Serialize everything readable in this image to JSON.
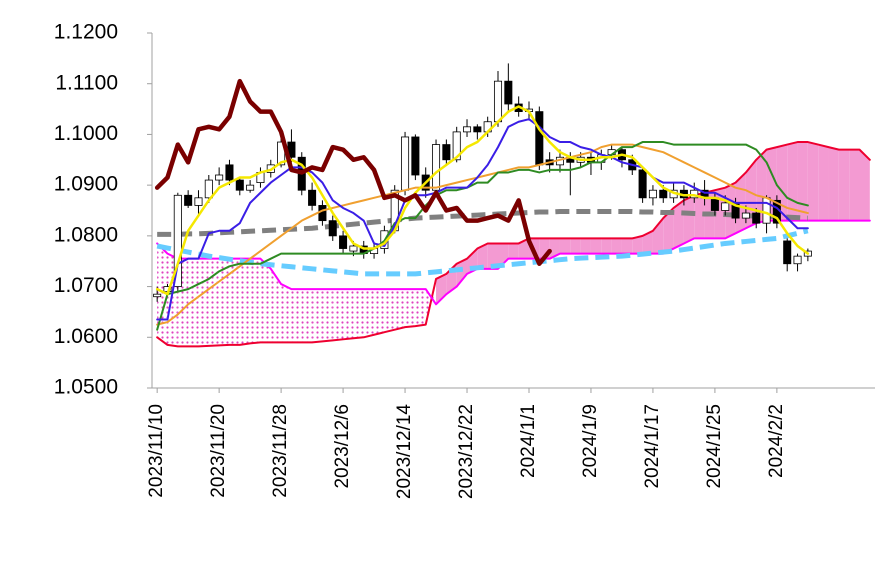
{
  "chart_data": {
    "type": "candlestick",
    "categories": [
      "2023/11/10",
      null,
      null,
      null,
      null,
      null,
      "2023/11/20",
      null,
      null,
      null,
      null,
      null,
      "2023/11/28",
      null,
      null,
      null,
      null,
      null,
      "2023/12/6",
      null,
      null,
      null,
      null,
      null,
      "2023/12/14",
      null,
      null,
      null,
      null,
      null,
      "2023/12/22",
      null,
      null,
      null,
      null,
      null,
      "2024/1/1",
      null,
      null,
      null,
      null,
      null,
      "2024/1/9",
      null,
      null,
      null,
      null,
      null,
      "2024/1/17",
      null,
      null,
      null,
      null,
      null,
      "2024/1/25",
      null,
      null,
      null,
      null,
      null,
      "2024/2/2",
      null,
      null,
      null,
      null,
      null,
      null,
      null,
      null,
      null
    ],
    "open": [
      1.068,
      1.069,
      1.07,
      1.088,
      1.086,
      1.0875,
      1.091,
      1.094,
      1.091,
      1.089,
      1.0905,
      1.0925,
      1.094,
      1.0985,
      1.0955,
      1.089,
      1.086,
      1.083,
      1.08,
      1.077,
      1.078,
      1.0765,
      1.0775,
      1.081,
      1.089,
      1.0995,
      1.092,
      1.089,
      1.098,
      1.095,
      1.1005,
      1.1015,
      1.1005,
      1.1025,
      1.1105,
      1.106,
      1.1045,
      1.1045,
      1.095,
      1.094,
      1.0955,
      1.0945,
      1.0955,
      1.0945,
      1.096,
      1.097,
      1.095,
      1.093,
      1.0875,
      1.089,
      1.0875,
      1.089,
      1.0875,
      1.089,
      1.0875,
      1.085,
      1.0865,
      1.0835,
      1.0845,
      1.0825,
      1.087,
      1.079,
      1.0745,
      1.076,
      null,
      null,
      null,
      null,
      null,
      null
    ],
    "high": [
      1.07,
      1.0705,
      1.0885,
      1.089,
      1.089,
      1.092,
      1.0935,
      1.095,
      1.0915,
      1.091,
      1.0935,
      1.095,
      1.1,
      1.101,
      1.0965,
      1.0905,
      1.087,
      1.084,
      1.081,
      1.079,
      1.079,
      1.0785,
      1.082,
      1.09,
      1.1005,
      1.1,
      1.0935,
      1.099,
      1.099,
      1.1015,
      1.103,
      1.102,
      1.1035,
      1.1125,
      1.114,
      1.1075,
      1.1065,
      1.1055,
      1.0965,
      1.097,
      1.0965,
      1.0965,
      1.0965,
      1.097,
      1.098,
      1.0975,
      1.096,
      1.0935,
      1.09,
      1.09,
      1.0905,
      1.09,
      1.0905,
      1.091,
      1.0885,
      1.088,
      1.0875,
      1.086,
      1.0855,
      1.088,
      1.088,
      1.0795,
      1.0765,
      1.0775,
      null,
      null,
      null,
      null,
      null,
      null
    ],
    "low": [
      1.067,
      1.0685,
      1.069,
      1.0855,
      1.084,
      1.0865,
      1.09,
      1.09,
      1.088,
      1.0885,
      1.0895,
      1.0915,
      1.0935,
      1.0945,
      1.088,
      1.085,
      1.082,
      1.079,
      1.0765,
      1.076,
      1.0755,
      1.0755,
      1.0765,
      1.0805,
      1.088,
      1.091,
      1.0875,
      1.088,
      1.094,
      1.0945,
      1.0995,
      1.099,
      1.0995,
      1.1015,
      1.1045,
      1.1035,
      1.103,
      1.093,
      1.0925,
      1.0925,
      1.088,
      1.0935,
      1.092,
      1.093,
      1.095,
      1.0935,
      1.092,
      1.0865,
      1.086,
      1.0865,
      1.0865,
      1.086,
      1.0865,
      1.086,
      1.084,
      1.084,
      1.0825,
      1.0825,
      1.0815,
      1.0805,
      1.0815,
      1.073,
      1.073,
      1.075,
      null,
      null,
      null,
      null,
      null,
      null
    ],
    "close": [
      1.0685,
      1.07,
      1.088,
      1.086,
      1.0875,
      1.091,
      1.092,
      1.091,
      1.089,
      1.09,
      1.0925,
      1.094,
      1.0985,
      1.0955,
      1.089,
      1.086,
      1.083,
      1.08,
      1.0775,
      1.078,
      1.0765,
      1.0775,
      1.081,
      1.089,
      1.0995,
      1.092,
      1.089,
      1.098,
      1.095,
      1.1005,
      1.1015,
      1.1005,
      1.1025,
      1.1105,
      1.106,
      1.1045,
      1.105,
      1.094,
      1.094,
      1.0955,
      1.0945,
      1.0955,
      1.0945,
      1.096,
      1.097,
      1.095,
      1.093,
      1.0875,
      1.089,
      1.0875,
      1.089,
      1.0875,
      1.089,
      1.0875,
      1.085,
      1.0865,
      1.0835,
      1.0845,
      1.0825,
      1.0875,
      1.0825,
      1.0745,
      1.076,
      1.077,
      null,
      null,
      null,
      null,
      null,
      null
    ],
    "up_color": "#ffffff",
    "down_color": "#000000",
    "cloud": {
      "fill_color": "#f39ad2",
      "span_a": {
        "color": "#ee0030",
        "values": [
          1.06,
          1.0585,
          1.0582,
          1.0582,
          1.0582,
          1.0583,
          1.0584,
          1.0585,
          1.0585,
          1.0588,
          1.059,
          1.059,
          1.059,
          1.059,
          1.059,
          1.059,
          1.0592,
          1.0594,
          1.0596,
          1.0598,
          1.06,
          1.0605,
          1.061,
          1.0615,
          1.062,
          1.0622,
          1.0625,
          1.0715,
          1.0725,
          1.0745,
          1.0755,
          1.0775,
          1.0785,
          1.0785,
          1.0785,
          1.0785,
          1.0795,
          1.0795,
          1.0795,
          1.0795,
          1.0795,
          1.0795,
          1.0795,
          1.0795,
          1.0795,
          1.0795,
          1.0795,
          1.08,
          1.081,
          1.0835,
          1.0855,
          1.087,
          1.088,
          1.0885,
          1.089,
          1.0895,
          1.0905,
          1.0925,
          1.095,
          1.097,
          1.0975,
          1.098,
          1.0985,
          1.0985,
          1.098,
          1.0975,
          1.097,
          1.097,
          1.097,
          1.095
        ]
      },
      "span_b": {
        "color": "#ff00ff",
        "values": [
          1.0785,
          1.0765,
          1.0755,
          1.0755,
          1.0755,
          1.0755,
          1.0755,
          1.0755,
          1.0755,
          1.0755,
          1.0755,
          1.0735,
          1.0705,
          1.0695,
          1.0695,
          1.0695,
          1.0695,
          1.0695,
          1.0695,
          1.0695,
          1.0695,
          1.0695,
          1.0695,
          1.0695,
          1.0695,
          1.0695,
          1.0695,
          1.0665,
          1.0685,
          1.07,
          1.0725,
          1.0735,
          1.0735,
          1.0735,
          1.0755,
          1.0755,
          1.0755,
          1.0755,
          1.0755,
          1.0765,
          1.0765,
          1.0765,
          1.0765,
          1.0765,
          1.0765,
          1.0765,
          1.0765,
          1.0765,
          1.0765,
          1.0765,
          1.0775,
          1.0785,
          1.0795,
          1.0795,
          1.0795,
          1.0795,
          1.0805,
          1.0815,
          1.0825,
          1.083,
          1.083,
          1.083,
          1.083,
          1.083,
          1.083,
          1.083,
          1.083,
          1.083,
          1.083,
          1.083
        ]
      }
    },
    "series": [
      {
        "color": "#66ccff",
        "dashed": true,
        "width": 5,
        "values": [
          1.078,
          1.0776,
          1.0772,
          1.0768,
          1.0764,
          1.076,
          1.0757,
          1.0754,
          1.0751,
          1.0748,
          1.0745,
          1.0743,
          1.0741,
          1.0739,
          1.0737,
          1.0735,
          1.0733,
          1.0731,
          1.0729,
          1.0727,
          1.0725,
          1.0725,
          1.0725,
          1.0725,
          1.0725,
          1.0725,
          1.0727,
          1.0729,
          1.0731,
          1.0733,
          1.0735,
          1.0737,
          1.0739,
          1.0741,
          1.0743,
          1.0745,
          1.0747,
          1.0749,
          1.0751,
          1.0753,
          1.0755,
          1.0756,
          1.0757,
          1.0758,
          1.0759,
          1.076,
          1.0762,
          1.0764,
          1.0766,
          1.0768,
          1.077,
          1.0773,
          1.0776,
          1.0779,
          1.0782,
          1.0785,
          1.0787,
          1.0789,
          1.0791,
          1.0793,
          1.0795,
          1.08,
          1.0805,
          1.081,
          null,
          null,
          null,
          null,
          null,
          null
        ]
      },
      {
        "color": "#808080",
        "dashed": true,
        "width": 5,
        "values": [
          1.0803,
          1.0803,
          1.0803,
          1.0804,
          1.0804,
          1.0805,
          1.0806,
          1.0807,
          1.0808,
          1.0809,
          1.081,
          1.0811,
          1.0812,
          1.0813,
          1.0814,
          1.0815,
          1.0817,
          1.0819,
          1.0821,
          1.0823,
          1.0825,
          1.0827,
          1.0829,
          1.0831,
          1.0833,
          1.0835,
          1.0836,
          1.0837,
          1.0838,
          1.0839,
          1.084,
          1.0841,
          1.0842,
          1.0843,
          1.0844,
          1.0845,
          1.0846,
          1.0847,
          1.0847,
          1.0848,
          1.0848,
          1.0848,
          1.0848,
          1.0848,
          1.0848,
          1.0848,
          1.0848,
          1.0847,
          1.0847,
          1.0846,
          1.0846,
          1.0845,
          1.0844,
          1.0843,
          1.0843,
          1.0842,
          1.0841,
          1.084,
          1.0839,
          1.0839,
          1.0838,
          1.0837,
          1.0836,
          1.0835,
          null,
          null,
          null,
          null,
          null,
          null
        ]
      },
      {
        "color": "#f0a030",
        "dashed": false,
        "width": 2,
        "values": [
          1.0625,
          1.063,
          1.0645,
          1.0665,
          1.068,
          1.0695,
          1.071,
          1.0725,
          1.074,
          1.0755,
          1.077,
          1.0785,
          1.08,
          1.0815,
          1.083,
          1.084,
          1.085,
          1.0855,
          1.086,
          1.0865,
          1.087,
          1.0875,
          1.088,
          1.0885,
          1.089,
          1.0895,
          1.0895,
          1.0895,
          1.09,
          1.0905,
          1.091,
          1.0915,
          1.092,
          1.0925,
          1.093,
          1.0935,
          1.0935,
          1.094,
          1.0945,
          1.095,
          1.0955,
          1.096,
          1.0965,
          1.0975,
          1.098,
          1.098,
          1.098,
          1.0975,
          1.097,
          1.0965,
          1.0955,
          1.0945,
          1.0935,
          1.0925,
          1.0915,
          1.0905,
          1.0895,
          1.089,
          1.088,
          1.0875,
          1.0865,
          1.0855,
          1.085,
          1.0845,
          null,
          null,
          null,
          null,
          null,
          null
        ]
      },
      {
        "color": "#2e8b22",
        "dashed": false,
        "width": 2,
        "values": [
          1.0615,
          1.0685,
          1.069,
          1.0695,
          1.0705,
          1.0715,
          1.073,
          1.074,
          1.0745,
          1.0745,
          1.0745,
          1.0755,
          1.0765,
          1.0765,
          1.0765,
          1.0765,
          1.0765,
          1.0765,
          1.0765,
          1.0765,
          1.0765,
          1.0775,
          1.079,
          1.0825,
          1.0835,
          1.0835,
          1.086,
          1.088,
          1.089,
          1.089,
          1.0895,
          1.0905,
          1.0905,
          1.0925,
          1.0925,
          1.093,
          1.093,
          1.0925,
          1.093,
          1.093,
          1.093,
          1.0935,
          1.0945,
          1.0945,
          1.096,
          1.0975,
          1.0975,
          1.0985,
          1.0985,
          1.0985,
          1.098,
          1.098,
          1.098,
          1.098,
          1.098,
          1.098,
          1.098,
          1.098,
          1.097,
          1.0945,
          1.09,
          1.0875,
          1.0865,
          1.086,
          null,
          null,
          null,
          null,
          null,
          null
        ]
      },
      {
        "color": "#3a1ee6",
        "dashed": false,
        "width": 2,
        "values": [
          1.0635,
          1.0635,
          1.0745,
          1.0755,
          1.0755,
          1.0805,
          1.081,
          1.081,
          1.0825,
          1.0865,
          1.0885,
          1.0905,
          1.092,
          1.0935,
          1.0935,
          1.0925,
          1.0905,
          1.087,
          1.0855,
          1.0845,
          1.083,
          1.0785,
          1.078,
          1.082,
          1.087,
          1.088,
          1.088,
          1.0885,
          1.0895,
          1.0895,
          1.0895,
          1.0915,
          1.094,
          1.0975,
          1.1015,
          1.1025,
          1.103,
          1.1015,
          1.0995,
          1.0985,
          1.0985,
          1.0975,
          1.097,
          1.096,
          1.0955,
          1.0945,
          1.094,
          1.0935,
          1.0915,
          1.0905,
          1.0905,
          1.0905,
          1.0895,
          1.0885,
          1.0885,
          1.0875,
          1.0865,
          1.0865,
          1.0865,
          1.0865,
          1.0855,
          1.0835,
          1.0815,
          1.0815,
          null,
          null,
          null,
          null,
          null,
          null
        ]
      },
      {
        "color": "#f5e800",
        "dashed": false,
        "width": 2.5,
        "values": [
          1.0695,
          1.0685,
          1.0745,
          1.081,
          1.084,
          1.087,
          1.0895,
          1.0905,
          1.0915,
          1.0915,
          1.0925,
          1.093,
          1.0945,
          1.095,
          1.094,
          1.0915,
          1.088,
          1.0845,
          1.0815,
          1.0785,
          1.0775,
          1.0775,
          1.0785,
          1.081,
          1.0855,
          1.0885,
          1.0905,
          1.0925,
          1.094,
          1.0955,
          1.0975,
          1.0985,
          1.1005,
          1.1025,
          1.1045,
          1.1055,
          1.1045,
          1.101,
          1.0985,
          1.0965,
          1.0955,
          1.095,
          1.095,
          1.0955,
          1.0955,
          1.096,
          1.0955,
          1.0935,
          1.0915,
          1.0895,
          1.0885,
          1.088,
          1.088,
          1.0875,
          1.0875,
          1.087,
          1.086,
          1.0855,
          1.085,
          1.0845,
          1.0835,
          1.0805,
          1.078,
          1.0765,
          null,
          null,
          null,
          null,
          null,
          null
        ]
      },
      {
        "color": "#7a0000",
        "dashed": false,
        "width": 4.5,
        "values": [
          1.0895,
          1.0915,
          1.098,
          1.0945,
          1.101,
          1.1015,
          1.101,
          1.1035,
          1.1105,
          1.1065,
          1.1045,
          1.1045,
          1.1005,
          1.093,
          1.0925,
          1.0935,
          1.093,
          1.0975,
          1.097,
          1.095,
          1.0955,
          1.093,
          1.0875,
          1.088,
          1.087,
          1.088,
          1.085,
          1.0885,
          1.085,
          1.0855,
          1.083,
          1.083,
          1.0835,
          1.084,
          1.083,
          1.087,
          1.079,
          1.0745,
          1.077,
          null,
          null,
          null,
          null,
          null,
          null,
          null,
          null,
          null,
          null,
          null,
          null,
          null,
          null,
          null,
          null,
          null,
          null,
          null,
          null,
          null,
          null,
          null,
          null,
          null,
          null,
          null,
          null,
          null,
          null,
          null
        ]
      }
    ],
    "ylim": [
      1.05,
      1.12
    ],
    "yticks": [
      {
        "value": 1.05,
        "label": "1.0500"
      },
      {
        "value": 1.06,
        "label": "1.0600"
      },
      {
        "value": 1.07,
        "label": "1.0700"
      },
      {
        "value": 1.08,
        "label": "1.0800"
      },
      {
        "value": 1.09,
        "label": "1.0900"
      },
      {
        "value": 1.1,
        "label": "1.1000"
      },
      {
        "value": 1.11,
        "label": "1.1100"
      },
      {
        "value": 1.12,
        "label": "1.1200"
      }
    ],
    "grid": false
  }
}
